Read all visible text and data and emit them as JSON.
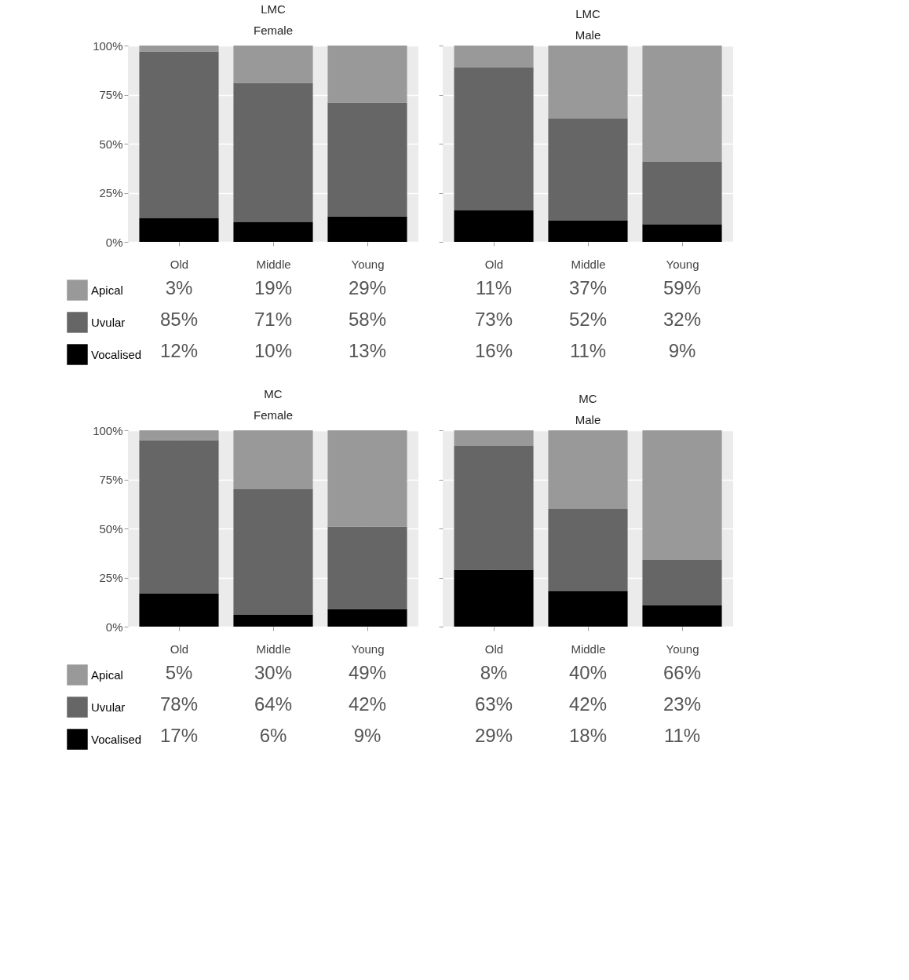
{
  "chart_data": [
    {
      "type": "bar",
      "stacked": true,
      "title": "LMC",
      "subtitle": "Female",
      "categories": [
        "Old",
        "Middle",
        "Young"
      ],
      "ylim": [
        0,
        100
      ],
      "yticks": [
        {
          "value": 0,
          "label": "0%"
        },
        {
          "value": 25,
          "label": "25%"
        },
        {
          "value": 50,
          "label": "50%"
        },
        {
          "value": 75,
          "label": "75%"
        },
        {
          "value": 100,
          "label": "100%"
        }
      ],
      "grid": true,
      "legend": "bottom left",
      "series": [
        {
          "name": "Vocalised",
          "color": "#000000",
          "values": [
            12,
            10,
            13
          ],
          "value_labels": [
            "12%",
            "10%",
            "13%"
          ]
        },
        {
          "name": "Uvular",
          "color": "#666666",
          "values": [
            85,
            71,
            58
          ],
          "value_labels": [
            "85%",
            "71%",
            "58%"
          ]
        },
        {
          "name": "Apical",
          "color": "#999999",
          "values": [
            3,
            19,
            29
          ],
          "value_labels": [
            "3%",
            "19%",
            "29%"
          ]
        }
      ]
    },
    {
      "type": "bar",
      "stacked": true,
      "title": "LMC",
      "subtitle": "Male",
      "categories": [
        "Old",
        "Middle",
        "Young"
      ],
      "ylim": [
        0,
        100
      ],
      "yticks": [
        {
          "value": 0,
          "label": null
        },
        {
          "value": 25,
          "label": null
        },
        {
          "value": 50,
          "label": null
        },
        {
          "value": 75,
          "label": null
        },
        {
          "value": 100,
          "label": null
        }
      ],
      "grid": true,
      "tick_labels": "x",
      "series": [
        {
          "color": "#000000",
          "values": [
            16,
            11,
            9
          ],
          "value_labels": [
            "16%",
            "11%",
            "9%"
          ]
        },
        {
          "color": "#666666",
          "values": [
            73,
            52,
            32
          ],
          "value_labels": [
            "73%",
            "52%",
            "32%"
          ]
        },
        {
          "color": "#999999",
          "values": [
            11,
            37,
            59
          ],
          "value_labels": [
            "11%",
            "37%",
            "59%"
          ]
        }
      ]
    },
    {
      "type": "bar",
      "stacked": true,
      "title": "MC",
      "subtitle": "Female",
      "categories": [
        "Old",
        "Middle",
        "Young"
      ],
      "ylim": [
        0,
        100
      ],
      "yticks": [
        {
          "value": 0,
          "label": "0%"
        },
        {
          "value": 25,
          "label": "25%"
        },
        {
          "value": 50,
          "label": "50%"
        },
        {
          "value": 75,
          "label": "75%"
        },
        {
          "value": 100,
          "label": "100%"
        }
      ],
      "grid": true,
      "legend": "bottom left",
      "series": [
        {
          "name": "Vocalised",
          "color": "#000000",
          "values": [
            17,
            6,
            9
          ],
          "value_labels": [
            "17%",
            "6%",
            "9%"
          ]
        },
        {
          "name": "Uvular",
          "color": "#666666",
          "values": [
            78,
            64,
            42
          ],
          "value_labels": [
            "78%",
            "64%",
            "42%"
          ]
        },
        {
          "name": "Apical",
          "color": "#999999",
          "values": [
            5,
            30,
            49
          ],
          "value_labels": [
            "5%",
            "30%",
            "49%"
          ]
        }
      ]
    },
    {
      "type": "bar",
      "stacked": true,
      "title": "MC",
      "subtitle": "Male",
      "categories": [
        "Old",
        "Middle",
        "Young"
      ],
      "ylim": [
        0,
        100
      ],
      "yticks": [
        {
          "value": 0,
          "label": null
        },
        {
          "value": 25,
          "label": null
        },
        {
          "value": 50,
          "label": null
        },
        {
          "value": 75,
          "label": null
        },
        {
          "value": 100,
          "label": null
        }
      ],
      "grid": true,
      "tick_labels": "x",
      "series": [
        {
          "color": "#000000",
          "values": [
            29,
            18,
            11
          ],
          "value_labels": [
            "29%",
            "18%",
            "11%"
          ]
        },
        {
          "color": "#666666",
          "values": [
            63,
            42,
            23
          ],
          "value_labels": [
            "63%",
            "42%",
            "23%"
          ]
        },
        {
          "color": "#999999",
          "values": [
            8,
            40,
            66
          ],
          "value_labels": [
            "8%",
            "40%",
            "66%"
          ]
        }
      ]
    }
  ]
}
